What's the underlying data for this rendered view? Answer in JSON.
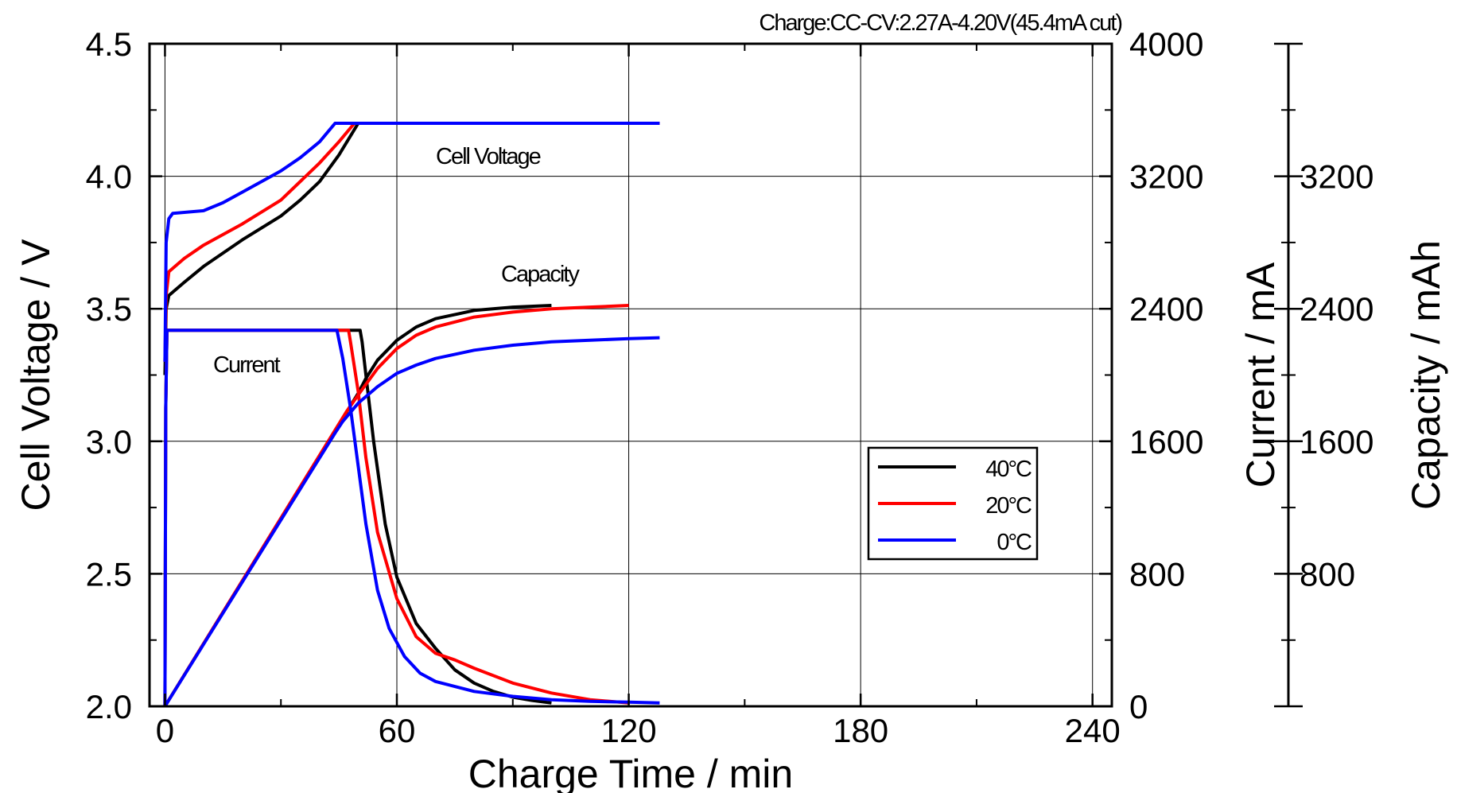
{
  "chart_data": {
    "type": "line",
    "title": "Charge:CC-CV:2.27A-4.20V(45.4mA  cut)",
    "xlabel": "Charge  Time  /  min",
    "ylabel_left": "Cell  Voltage  /  V",
    "ylabel_right_1": "Current  /  mA",
    "ylabel_right_2": "Capacity  /  mAh",
    "xlim": [
      -4,
      245
    ],
    "ylim_left": [
      2.0,
      4.5
    ],
    "ylim_right": [
      0,
      4000
    ],
    "x_ticks": [
      "0",
      "60",
      "120",
      "180",
      "240"
    ],
    "y_left_ticks": [
      "2.0",
      "2.5",
      "3.0",
      "3.5",
      "4.0",
      "4.5"
    ],
    "y_current_ticks": [
      "0",
      "800",
      "1600",
      "2400",
      "3200",
      "4000"
    ],
    "y_capacity_ticks": [
      "800",
      "1600",
      "2400",
      "3200"
    ],
    "grid": true,
    "annotations": {
      "cell_voltage": "Cell  Voltage",
      "capacity": "Capacity",
      "current": "Current"
    },
    "legend_position": "lower-right",
    "series": [
      {
        "name": "40°C",
        "color": "#000000",
        "voltage": {
          "x": [
            0,
            0.3,
            1,
            5,
            10,
            20,
            30,
            35,
            40,
            45,
            50,
            128
          ],
          "y": [
            3.25,
            3.5,
            3.55,
            3.6,
            3.66,
            3.76,
            3.85,
            3.91,
            3.98,
            4.08,
            4.2,
            4.2
          ]
        },
        "current": {
          "x": [
            0,
            0.2,
            0.5,
            50,
            50.5,
            51,
            52,
            54,
            57,
            60,
            65,
            70,
            75,
            80,
            85,
            90,
            95,
            100
          ],
          "y": [
            0,
            1800,
            2270,
            2270,
            2270,
            2200,
            2000,
            1600,
            1100,
            780,
            500,
            350,
            220,
            140,
            90,
            55,
            35,
            20
          ]
        },
        "capacity": {
          "x": [
            0,
            50,
            52,
            55,
            60,
            65,
            70,
            80,
            90,
            100
          ],
          "y": [
            0,
            1890,
            1980,
            2090,
            2210,
            2290,
            2340,
            2390,
            2410,
            2420
          ]
        }
      },
      {
        "name": "20°C",
        "color": "#ff0000",
        "voltage": {
          "x": [
            0,
            0.3,
            1,
            5,
            10,
            20,
            30,
            40,
            45,
            49,
            128
          ],
          "y": [
            3.3,
            3.55,
            3.64,
            3.69,
            3.74,
            3.82,
            3.91,
            4.05,
            4.13,
            4.2,
            4.2
          ]
        },
        "current": {
          "x": [
            0,
            0.2,
            0.5,
            47,
            47.5,
            48,
            50,
            52,
            55,
            60,
            65,
            70,
            75,
            80,
            90,
            100,
            110,
            120
          ],
          "y": [
            0,
            1800,
            2270,
            2270,
            2270,
            2200,
            1900,
            1500,
            1050,
            650,
            420,
            320,
            280,
            230,
            140,
            80,
            40,
            20
          ]
        },
        "capacity": {
          "x": [
            0,
            47,
            50,
            55,
            60,
            65,
            70,
            80,
            90,
            100,
            110,
            120
          ],
          "y": [
            0,
            1780,
            1880,
            2040,
            2160,
            2240,
            2290,
            2350,
            2380,
            2400,
            2410,
            2420
          ]
        }
      },
      {
        "name": "0°C",
        "color": "#0000ff",
        "voltage": {
          "x": [
            0,
            0.3,
            1,
            2,
            10,
            15,
            20,
            25,
            30,
            35,
            40,
            44,
            128
          ],
          "y": [
            3.3,
            3.75,
            3.84,
            3.86,
            3.87,
            3.9,
            3.94,
            3.98,
            4.02,
            4.07,
            4.13,
            4.2,
            4.2
          ]
        },
        "current": {
          "x": [
            0,
            0.2,
            0.5,
            44,
            44.5,
            46,
            48,
            50,
            52,
            55,
            58,
            62,
            66,
            70,
            80,
            90,
            100,
            110,
            120,
            128
          ],
          "y": [
            0,
            1800,
            2270,
            2270,
            2270,
            2100,
            1800,
            1450,
            1100,
            700,
            470,
            300,
            200,
            150,
            90,
            60,
            40,
            30,
            25,
            20
          ]
        },
        "capacity": {
          "x": [
            0,
            44,
            46,
            50,
            55,
            60,
            65,
            70,
            80,
            90,
            100,
            110,
            120,
            128
          ],
          "y": [
            0,
            1650,
            1720,
            1830,
            1930,
            2010,
            2060,
            2100,
            2150,
            2180,
            2200,
            2210,
            2220,
            2225
          ]
        }
      }
    ]
  }
}
